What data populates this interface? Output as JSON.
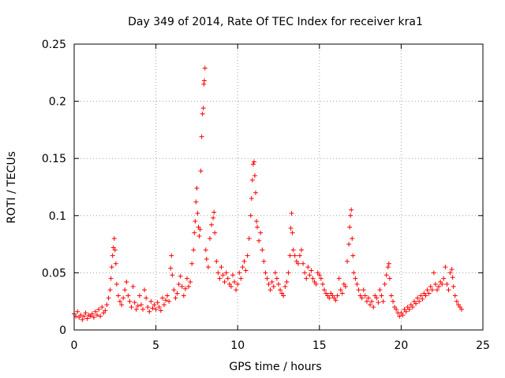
{
  "chart_data": {
    "type": "scatter",
    "title": "Day 349 of 2014, Rate Of TEC Index for receiver kra1",
    "xlabel": "GPS time / hours",
    "ylabel": "ROTI / TECUs",
    "xlim": [
      0,
      25
    ],
    "ylim": [
      0,
      0.25
    ],
    "xticks": [
      0,
      5,
      10,
      15,
      20,
      25
    ],
    "yticks": [
      0,
      0.05,
      0.1,
      0.15,
      0.2,
      0.25
    ],
    "xtick_labels": [
      "0",
      "5",
      "10",
      "15",
      "20",
      "25"
    ],
    "ytick_labels": [
      "0",
      "0.05",
      "0.1",
      "0.15",
      "0.2",
      "0.25"
    ],
    "grid": true,
    "marker": "+",
    "color": "#ff0000",
    "series": [
      {
        "name": "ROTI",
        "points": [
          [
            0.0,
            0.014
          ],
          [
            0.1,
            0.012
          ],
          [
            0.2,
            0.016
          ],
          [
            0.3,
            0.011
          ],
          [
            0.4,
            0.013
          ],
          [
            0.5,
            0.009
          ],
          [
            0.6,
            0.012
          ],
          [
            0.7,
            0.015
          ],
          [
            0.8,
            0.01
          ],
          [
            0.9,
            0.013
          ],
          [
            1.0,
            0.012
          ],
          [
            1.1,
            0.014
          ],
          [
            1.2,
            0.011
          ],
          [
            1.3,
            0.016
          ],
          [
            1.4,
            0.013
          ],
          [
            1.5,
            0.018
          ],
          [
            1.6,
            0.012
          ],
          [
            1.7,
            0.02
          ],
          [
            1.8,
            0.015
          ],
          [
            1.9,
            0.017
          ],
          [
            2.0,
            0.022
          ],
          [
            2.1,
            0.028
          ],
          [
            2.2,
            0.035
          ],
          [
            2.25,
            0.045
          ],
          [
            2.3,
            0.055
          ],
          [
            2.35,
            0.065
          ],
          [
            2.4,
            0.072
          ],
          [
            2.45,
            0.08
          ],
          [
            2.5,
            0.07
          ],
          [
            2.55,
            0.058
          ],
          [
            2.6,
            0.04
          ],
          [
            2.7,
            0.03
          ],
          [
            2.8,
            0.025
          ],
          [
            2.9,
            0.022
          ],
          [
            3.0,
            0.028
          ],
          [
            3.1,
            0.035
          ],
          [
            3.2,
            0.042
          ],
          [
            3.3,
            0.03
          ],
          [
            3.4,
            0.025
          ],
          [
            3.5,
            0.02
          ],
          [
            3.6,
            0.038
          ],
          [
            3.7,
            0.024
          ],
          [
            3.8,
            0.018
          ],
          [
            3.9,
            0.021
          ],
          [
            4.0,
            0.03
          ],
          [
            4.1,
            0.022
          ],
          [
            4.2,
            0.018
          ],
          [
            4.3,
            0.035
          ],
          [
            4.4,
            0.028
          ],
          [
            4.5,
            0.02
          ],
          [
            4.6,
            0.016
          ],
          [
            4.7,
            0.025
          ],
          [
            4.8,
            0.019
          ],
          [
            4.9,
            0.022
          ],
          [
            5.0,
            0.018
          ],
          [
            5.1,
            0.024
          ],
          [
            5.2,
            0.02
          ],
          [
            5.3,
            0.017
          ],
          [
            5.4,
            0.028
          ],
          [
            5.5,
            0.022
          ],
          [
            5.6,
            0.026
          ],
          [
            5.7,
            0.03
          ],
          [
            5.8,
            0.025
          ],
          [
            5.9,
            0.054
          ],
          [
            5.95,
            0.065
          ],
          [
            6.0,
            0.048
          ],
          [
            6.1,
            0.035
          ],
          [
            6.2,
            0.028
          ],
          [
            6.3,
            0.032
          ],
          [
            6.4,
            0.04
          ],
          [
            6.5,
            0.047
          ],
          [
            6.6,
            0.038
          ],
          [
            6.7,
            0.03
          ],
          [
            6.8,
            0.036
          ],
          [
            6.9,
            0.045
          ],
          [
            7.0,
            0.038
          ],
          [
            7.1,
            0.042
          ],
          [
            7.2,
            0.058
          ],
          [
            7.3,
            0.07
          ],
          [
            7.35,
            0.085
          ],
          [
            7.4,
            0.095
          ],
          [
            7.45,
            0.112
          ],
          [
            7.5,
            0.124
          ],
          [
            7.55,
            0.102
          ],
          [
            7.6,
            0.09
          ],
          [
            7.65,
            0.082
          ],
          [
            7.7,
            0.088
          ],
          [
            7.75,
            0.139
          ],
          [
            7.8,
            0.169
          ],
          [
            7.85,
            0.189
          ],
          [
            7.9,
            0.194
          ],
          [
            7.93,
            0.215
          ],
          [
            7.96,
            0.218
          ],
          [
            8.0,
            0.229
          ],
          [
            8.05,
            0.07
          ],
          [
            8.1,
            0.062
          ],
          [
            8.2,
            0.055
          ],
          [
            8.3,
            0.08
          ],
          [
            8.4,
            0.092
          ],
          [
            8.5,
            0.098
          ],
          [
            8.55,
            0.103
          ],
          [
            8.6,
            0.085
          ],
          [
            8.7,
            0.06
          ],
          [
            8.8,
            0.05
          ],
          [
            8.9,
            0.045
          ],
          [
            9.0,
            0.055
          ],
          [
            9.1,
            0.048
          ],
          [
            9.2,
            0.042
          ],
          [
            9.3,
            0.05
          ],
          [
            9.4,
            0.045
          ],
          [
            9.5,
            0.04
          ],
          [
            9.6,
            0.038
          ],
          [
            9.7,
            0.048
          ],
          [
            9.8,
            0.042
          ],
          [
            9.9,
            0.035
          ],
          [
            10.0,
            0.04
          ],
          [
            10.1,
            0.05
          ],
          [
            10.2,
            0.045
          ],
          [
            10.3,
            0.055
          ],
          [
            10.4,
            0.06
          ],
          [
            10.5,
            0.052
          ],
          [
            10.6,
            0.065
          ],
          [
            10.7,
            0.08
          ],
          [
            10.8,
            0.1
          ],
          [
            10.85,
            0.115
          ],
          [
            10.9,
            0.131
          ],
          [
            10.95,
            0.145
          ],
          [
            11.0,
            0.147
          ],
          [
            11.05,
            0.135
          ],
          [
            11.1,
            0.12
          ],
          [
            11.15,
            0.095
          ],
          [
            11.2,
            0.09
          ],
          [
            11.3,
            0.078
          ],
          [
            11.4,
            0.085
          ],
          [
            11.5,
            0.07
          ],
          [
            11.6,
            0.06
          ],
          [
            11.7,
            0.05
          ],
          [
            11.8,
            0.045
          ],
          [
            11.9,
            0.04
          ],
          [
            12.0,
            0.035
          ],
          [
            12.1,
            0.042
          ],
          [
            12.2,
            0.038
          ],
          [
            12.3,
            0.05
          ],
          [
            12.4,
            0.045
          ],
          [
            12.5,
            0.04
          ],
          [
            12.6,
            0.035
          ],
          [
            12.7,
            0.032
          ],
          [
            12.8,
            0.03
          ],
          [
            12.9,
            0.038
          ],
          [
            13.0,
            0.042
          ],
          [
            13.1,
            0.05
          ],
          [
            13.2,
            0.065
          ],
          [
            13.25,
            0.089
          ],
          [
            13.3,
            0.102
          ],
          [
            13.35,
            0.085
          ],
          [
            13.4,
            0.07
          ],
          [
            13.5,
            0.065
          ],
          [
            13.6,
            0.06
          ],
          [
            13.7,
            0.058
          ],
          [
            13.8,
            0.065
          ],
          [
            13.9,
            0.07
          ],
          [
            14.0,
            0.058
          ],
          [
            14.1,
            0.05
          ],
          [
            14.2,
            0.045
          ],
          [
            14.3,
            0.055
          ],
          [
            14.4,
            0.048
          ],
          [
            14.5,
            0.052
          ],
          [
            14.6,
            0.045
          ],
          [
            14.7,
            0.042
          ],
          [
            14.8,
            0.04
          ],
          [
            14.9,
            0.05
          ],
          [
            15.0,
            0.048
          ],
          [
            15.1,
            0.045
          ],
          [
            15.2,
            0.04
          ],
          [
            15.3,
            0.035
          ],
          [
            15.4,
            0.032
          ],
          [
            15.5,
            0.03
          ],
          [
            15.6,
            0.028
          ],
          [
            15.7,
            0.032
          ],
          [
            15.8,
            0.03
          ],
          [
            15.9,
            0.028
          ],
          [
            16.0,
            0.026
          ],
          [
            16.1,
            0.03
          ],
          [
            16.2,
            0.045
          ],
          [
            16.3,
            0.035
          ],
          [
            16.4,
            0.032
          ],
          [
            16.5,
            0.04
          ],
          [
            16.6,
            0.038
          ],
          [
            16.7,
            0.06
          ],
          [
            16.8,
            0.075
          ],
          [
            16.85,
            0.09
          ],
          [
            16.9,
            0.1
          ],
          [
            16.95,
            0.105
          ],
          [
            17.0,
            0.08
          ],
          [
            17.05,
            0.065
          ],
          [
            17.1,
            0.05
          ],
          [
            17.2,
            0.045
          ],
          [
            17.3,
            0.04
          ],
          [
            17.4,
            0.035
          ],
          [
            17.5,
            0.03
          ],
          [
            17.6,
            0.028
          ],
          [
            17.7,
            0.035
          ],
          [
            17.8,
            0.03
          ],
          [
            17.9,
            0.025
          ],
          [
            18.0,
            0.028
          ],
          [
            18.1,
            0.022
          ],
          [
            18.2,
            0.025
          ],
          [
            18.3,
            0.02
          ],
          [
            18.4,
            0.03
          ],
          [
            18.5,
            0.028
          ],
          [
            18.6,
            0.024
          ],
          [
            18.7,
            0.035
          ],
          [
            18.8,
            0.03
          ],
          [
            18.9,
            0.025
          ],
          [
            19.0,
            0.04
          ],
          [
            19.1,
            0.048
          ],
          [
            19.2,
            0.055
          ],
          [
            19.25,
            0.058
          ],
          [
            19.3,
            0.045
          ],
          [
            19.4,
            0.03
          ],
          [
            19.5,
            0.025
          ],
          [
            19.6,
            0.02
          ],
          [
            19.7,
            0.018
          ],
          [
            19.8,
            0.015
          ],
          [
            19.9,
            0.012
          ],
          [
            20.0,
            0.015
          ],
          [
            20.1,
            0.013
          ],
          [
            20.2,
            0.018
          ],
          [
            20.3,
            0.016
          ],
          [
            20.4,
            0.02
          ],
          [
            20.5,
            0.018
          ],
          [
            20.6,
            0.022
          ],
          [
            20.7,
            0.02
          ],
          [
            20.8,
            0.025
          ],
          [
            20.9,
            0.023
          ],
          [
            21.0,
            0.028
          ],
          [
            21.1,
            0.025
          ],
          [
            21.2,
            0.03
          ],
          [
            21.3,
            0.027
          ],
          [
            21.4,
            0.032
          ],
          [
            21.5,
            0.03
          ],
          [
            21.6,
            0.035
          ],
          [
            21.7,
            0.032
          ],
          [
            21.8,
            0.038
          ],
          [
            21.9,
            0.035
          ],
          [
            22.0,
            0.05
          ],
          [
            22.1,
            0.04
          ],
          [
            22.2,
            0.035
          ],
          [
            22.3,
            0.038
          ],
          [
            22.4,
            0.042
          ],
          [
            22.5,
            0.04
          ],
          [
            22.6,
            0.045
          ],
          [
            22.7,
            0.055
          ],
          [
            22.8,
            0.04
          ],
          [
            22.9,
            0.035
          ],
          [
            23.0,
            0.05
          ],
          [
            23.1,
            0.053
          ],
          [
            23.15,
            0.046
          ],
          [
            23.2,
            0.038
          ],
          [
            23.3,
            0.03
          ],
          [
            23.4,
            0.025
          ],
          [
            23.5,
            0.022
          ],
          [
            23.6,
            0.02
          ],
          [
            23.7,
            0.018
          ]
        ]
      }
    ]
  }
}
